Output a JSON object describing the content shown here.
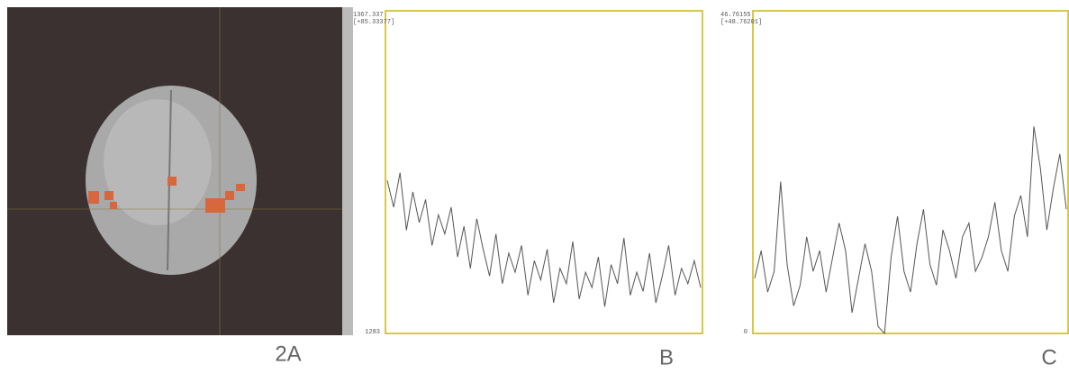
{
  "panels": [
    {
      "label": "2A"
    },
    {
      "label": "B",
      "top_label": "1367.337",
      "top_sub_label": "[+85.33377]",
      "bottom_label": "1283",
      "ylim": [
        1283,
        1367.337
      ],
      "values": [
        1323,
        1316,
        1325,
        1310,
        1320,
        1312,
        1318,
        1306,
        1314,
        1309,
        1316,
        1303,
        1311,
        1300,
        1313,
        1305,
        1298,
        1309,
        1296,
        1304,
        1299,
        1306,
        1293,
        1302,
        1297,
        1305,
        1291,
        1300,
        1296,
        1307,
        1292,
        1299,
        1295,
        1303,
        1290,
        1301,
        1296,
        1308,
        1293,
        1299,
        1294,
        1304,
        1291,
        1298,
        1306,
        1293,
        1300,
        1296,
        1302,
        1295
      ]
    },
    {
      "label": "C",
      "top_label": "46.76155",
      "top_sub_label": "[+48.76201]",
      "bottom_label": "0",
      "ylim": [
        0,
        46.76155
      ],
      "values": [
        8,
        12,
        6,
        9,
        22,
        10,
        4,
        7,
        14,
        9,
        12,
        6,
        11,
        16,
        12,
        3,
        8,
        13,
        9,
        1,
        0,
        11,
        17,
        9,
        6,
        13,
        18,
        10,
        7,
        15,
        12,
        8,
        14,
        16,
        9,
        11,
        14,
        19,
        12,
        9,
        17,
        20,
        14,
        30,
        24,
        15,
        21,
        26,
        18
      ]
    }
  ]
}
